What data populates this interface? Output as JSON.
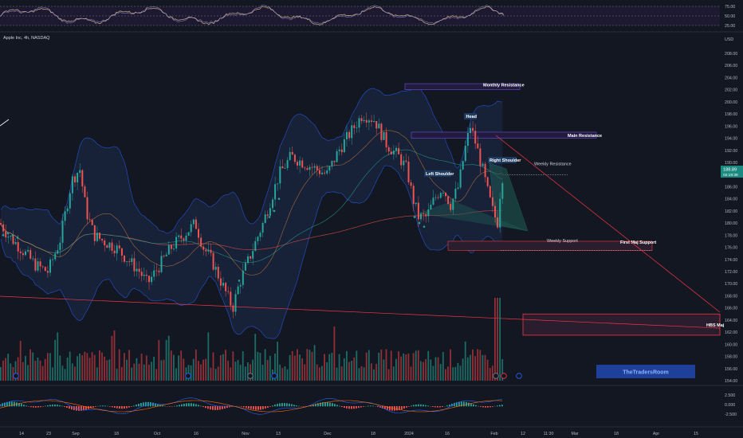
{
  "header": {
    "symbol_line": "Apple Inc, 4h, NASDAQ",
    "currency": "USD"
  },
  "rsi_panel": {
    "levels": [
      "75.00",
      "50.00",
      "25.00"
    ]
  },
  "price_axis": {
    "ticks": [
      "208.00",
      "206.00",
      "204.00",
      "202.00",
      "200.00",
      "198.00",
      "196.00",
      "194.00",
      "192.00",
      "190.00",
      "188.00",
      "186.00",
      "184.00",
      "182.00",
      "180.00",
      "178.00",
      "176.00",
      "174.00",
      "172.00",
      "170.00",
      "168.00",
      "166.00",
      "164.00",
      "162.00",
      "160.00",
      "158.00",
      "156.00",
      "154.00"
    ],
    "last_price": "188.89",
    "countdown": "02:19:38"
  },
  "macd_panel": {
    "levels": [
      "2.500",
      "0.000",
      "-2.500"
    ]
  },
  "time_axis": {
    "ticks": [
      "14",
      "23",
      "Sep",
      "18",
      "Oct",
      "16",
      "Nov",
      "13",
      "Dec",
      "18",
      "2024",
      "16",
      "Feb",
      "12",
      "11:30",
      "Mar",
      "18",
      "Apr",
      "15"
    ]
  },
  "annotations": {
    "monthly_resistance": "Monthly Resistance",
    "main_resistance": "Main Resistance",
    "weekly_resistance": "Weekly Resistance",
    "head": "Head",
    "left_shoulder": "Left Shoulder",
    "right_shoulder": "Right Shoulder",
    "weekly_support": "Weekly Support",
    "first_maj_support": "First Maj Support",
    "hbs_maj": "HBS Maj"
  },
  "watermark": "TheTradersRoom",
  "colors": {
    "background": "#131722",
    "bull": "#26a69a",
    "bear": "#ef5350",
    "zone_border": "#f23645",
    "zone_fill": "#2a1e2e",
    "blue_zone": "#2962ff",
    "band_fill": "#1c2a4a",
    "label_bg": "#1e3a5f"
  },
  "chart_data": {
    "type": "candlestick",
    "title": "Apple Inc, 4h, NASDAQ",
    "y_unit": "USD",
    "ylim": [
      153,
      210
    ],
    "x_categories": [
      "14",
      "23",
      "Sep",
      "18",
      "Oct",
      "16",
      "Nov",
      "13",
      "Dec",
      "18",
      "2024",
      "16",
      "Feb",
      "12",
      "11:30",
      "Mar",
      "18",
      "Apr",
      "15"
    ],
    "price_path": [
      [
        0,
        180
      ],
      [
        10,
        178
      ],
      [
        25,
        176
      ],
      [
        45,
        173
      ],
      [
        60,
        172
      ],
      [
        75,
        177
      ],
      [
        90,
        187
      ],
      [
        100,
        189
      ],
      [
        108,
        182
      ],
      [
        118,
        178
      ],
      [
        130,
        177
      ],
      [
        145,
        176
      ],
      [
        160,
        174
      ],
      [
        175,
        172
      ],
      [
        185,
        170
      ],
      [
        200,
        173
      ],
      [
        215,
        176
      ],
      [
        230,
        178
      ],
      [
        245,
        180
      ],
      [
        255,
        176
      ],
      [
        265,
        174
      ],
      [
        275,
        171
      ],
      [
        285,
        168
      ],
      [
        292,
        166
      ],
      [
        300,
        170
      ],
      [
        315,
        175
      ],
      [
        330,
        180
      ],
      [
        340,
        184
      ],
      [
        350,
        188
      ],
      [
        365,
        191
      ],
      [
        380,
        190
      ],
      [
        395,
        189
      ],
      [
        410,
        188
      ],
      [
        425,
        192
      ],
      [
        440,
        195
      ],
      [
        455,
        198
      ],
      [
        470,
        197
      ],
      [
        485,
        193
      ],
      [
        500,
        191
      ],
      [
        510,
        189
      ],
      [
        518,
        184
      ],
      [
        525,
        181
      ],
      [
        535,
        181
      ],
      [
        545,
        184
      ],
      [
        555,
        186
      ],
      [
        565,
        183
      ],
      [
        575,
        186
      ],
      [
        583,
        192
      ],
      [
        590,
        196
      ],
      [
        597,
        193
      ],
      [
        605,
        189
      ],
      [
        612,
        185
      ],
      [
        618,
        182
      ],
      [
        624,
        180
      ],
      [
        628,
        186
      ],
      [
        632,
        188.9
      ]
    ],
    "levels": {
      "monthly_resistance": [
        202,
        203
      ],
      "main_resistance": [
        194,
        195
      ],
      "weekly_resistance": 188,
      "weekly_support": [
        175.5,
        177
      ],
      "first_maj_support": 176,
      "hbs_maj_zone": [
        161.5,
        165
      ]
    },
    "pattern_points": {
      "left_shoulder": 185,
      "head": 197,
      "right_shoulder": 189
    },
    "last_price": 188.89
  }
}
